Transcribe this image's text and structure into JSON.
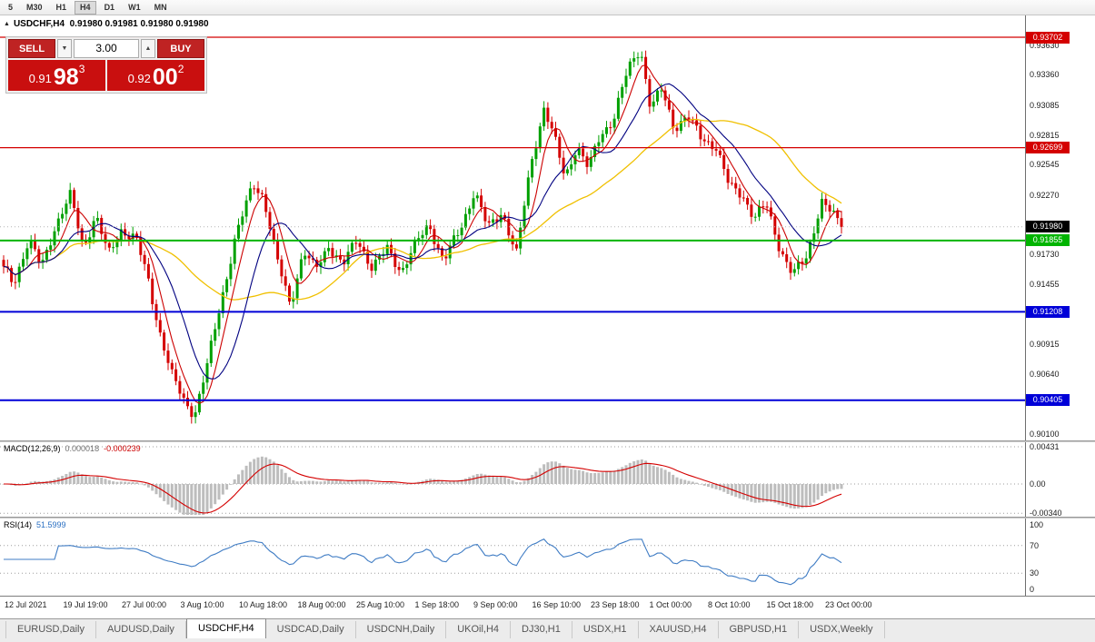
{
  "toolbar": {
    "timeframes": [
      "5",
      "M30",
      "H1",
      "H4",
      "D1",
      "W1",
      "MN"
    ],
    "active": "H4"
  },
  "chart_header": {
    "collapse_icon": "▲",
    "symbol": "USDCHF,H4",
    "ohlc": "0.91980 0.91981 0.91980 0.91980"
  },
  "trade_panel": {
    "sell_label": "SELL",
    "buy_label": "BUY",
    "volume": "3.00",
    "spin_down_icon": "▼",
    "spin_up_icon": "▲",
    "sell_price_small": "0.91",
    "sell_price_big": "98",
    "sell_price_sup": "3",
    "buy_price_small": "0.92",
    "buy_price_big": "00",
    "buy_price_sup": "2"
  },
  "chart_data": {
    "type": "candlestick",
    "symbol": "USDCHF",
    "timeframe": "H4",
    "current_price": "0.91980",
    "price_axis": {
      "min": 0.9004,
      "max": 0.939,
      "ticks": [
        "0.93630",
        "0.93360",
        "0.93085",
        "0.92815",
        "0.92545",
        "0.92270",
        "0.91730",
        "0.91455",
        "0.90915",
        "0.90640",
        "0.90100"
      ]
    },
    "levels": [
      {
        "label": "0.93702",
        "value": 0.93702,
        "color": "#d40000",
        "badge_bg": "#d40000",
        "style": "solid",
        "width": 1.2
      },
      {
        "label": "0.92699",
        "value": 0.92699,
        "color": "#d40000",
        "badge_bg": "#d40000",
        "style": "solid",
        "width": 1.2
      },
      {
        "label": "0.91980",
        "value": 0.9198,
        "color": "#b4b4b4",
        "badge_bg": "#000000",
        "style": "dotted",
        "width": 1
      },
      {
        "label": "0.91855",
        "value": 0.91855,
        "color": "#00b400",
        "badge_bg": "#00b400",
        "style": "solid",
        "width": 2
      },
      {
        "label": "0.91208",
        "value": 0.91208,
        "color": "#0000d8",
        "badge_bg": "#0000d8",
        "style": "solid",
        "width": 2
      },
      {
        "label": "0.90405",
        "value": 0.90405,
        "color": "#0000d8",
        "badge_bg": "#0000d8",
        "style": "solid",
        "width": 2
      }
    ],
    "colors": {
      "candle_up": "#00a000",
      "candle_down": "#d40000",
      "ma_fast": "#cc0000",
      "ma_mid": "#000080",
      "ma_slow": "#f0c000"
    },
    "candle_count": 215,
    "price_path": [
      [
        0.0,
        0.9162
      ],
      [
        0.012,
        0.9148
      ],
      [
        0.03,
        0.9185
      ],
      [
        0.045,
        0.9162
      ],
      [
        0.06,
        0.9196
      ],
      [
        0.08,
        0.9226
      ],
      [
        0.095,
        0.918
      ],
      [
        0.11,
        0.9208
      ],
      [
        0.125,
        0.9172
      ],
      [
        0.14,
        0.9196
      ],
      [
        0.158,
        0.9186
      ],
      [
        0.172,
        0.9152
      ],
      [
        0.186,
        0.9104
      ],
      [
        0.2,
        0.9064
      ],
      [
        0.214,
        0.9042
      ],
      [
        0.228,
        0.9028
      ],
      [
        0.242,
        0.9068
      ],
      [
        0.258,
        0.9126
      ],
      [
        0.276,
        0.9186
      ],
      [
        0.298,
        0.9238
      ],
      [
        0.31,
        0.9226
      ],
      [
        0.326,
        0.9168
      ],
      [
        0.342,
        0.9128
      ],
      [
        0.358,
        0.9176
      ],
      [
        0.372,
        0.9158
      ],
      [
        0.388,
        0.9182
      ],
      [
        0.405,
        0.9162
      ],
      [
        0.422,
        0.9188
      ],
      [
        0.44,
        0.916
      ],
      [
        0.458,
        0.9178
      ],
      [
        0.475,
        0.9158
      ],
      [
        0.492,
        0.9182
      ],
      [
        0.508,
        0.9201
      ],
      [
        0.525,
        0.9166
      ],
      [
        0.545,
        0.9196
      ],
      [
        0.562,
        0.9231
      ],
      [
        0.578,
        0.9196
      ],
      [
        0.595,
        0.9213
      ],
      [
        0.612,
        0.9172
      ],
      [
        0.63,
        0.9258
      ],
      [
        0.645,
        0.9306
      ],
      [
        0.658,
        0.9276
      ],
      [
        0.67,
        0.9243
      ],
      [
        0.684,
        0.9272
      ],
      [
        0.698,
        0.925
      ],
      [
        0.712,
        0.9282
      ],
      [
        0.728,
        0.9296
      ],
      [
        0.745,
        0.934
      ],
      [
        0.76,
        0.9362
      ],
      [
        0.772,
        0.9306
      ],
      [
        0.786,
        0.9322
      ],
      [
        0.8,
        0.9289
      ],
      [
        0.816,
        0.9298
      ],
      [
        0.832,
        0.9279
      ],
      [
        0.85,
        0.9272
      ],
      [
        0.866,
        0.9234
      ],
      [
        0.882,
        0.9228
      ],
      [
        0.896,
        0.9206
      ],
      [
        0.91,
        0.9218
      ],
      [
        0.926,
        0.918
      ],
      [
        0.942,
        0.9154
      ],
      [
        0.958,
        0.917
      ],
      [
        0.976,
        0.9222
      ],
      [
        1.0,
        0.9198
      ]
    ],
    "x_labels": [
      "12 Jul 2021",
      "19 Jul 19:00",
      "27 Jul 00:00",
      "3 Aug 10:00",
      "10 Aug 18:00",
      "18 Aug 00:00",
      "25 Aug 10:00",
      "1 Sep 18:00",
      "9 Sep 00:00",
      "16 Sep 10:00",
      "23 Sep 18:00",
      "1 Oct 00:00",
      "8 Oct 10:00",
      "15 Oct 18:00",
      "23 Oct 00:00"
    ],
    "indicators": {
      "macd": {
        "name": "MACD(12,26,9)",
        "value_main": "0.000018",
        "value_signal": "-0.000239",
        "axis_ticks": [
          {
            "label": "0.00431",
            "value": 0.00431
          },
          {
            "label": "0.00",
            "value": 0
          },
          {
            "label": "-0.00340",
            "value": -0.0034
          }
        ],
        "histogram_color": "#bdbdbd",
        "signal_color": "#d40000"
      },
      "rsi": {
        "name": "RSI(14)",
        "value": "51.5999",
        "axis_ticks": [
          {
            "label": "100",
            "value": 100
          },
          {
            "label": "70",
            "value": 70
          },
          {
            "label": "30",
            "value": 30
          },
          {
            "label": "0",
            "value": 0
          }
        ],
        "line_color": "#3f7cc4"
      }
    }
  },
  "tabs": {
    "items": [
      "EURUSD,Daily",
      "AUDUSD,Daily",
      "USDCHF,H4",
      "USDCAD,Daily",
      "USDCNH,Daily",
      "UKOil,H4",
      "DJ30,H1",
      "USDX,H1",
      "XAUUSD,H4",
      "GBPUSD,H1",
      "USDX,Weekly"
    ],
    "active_index": 2
  }
}
